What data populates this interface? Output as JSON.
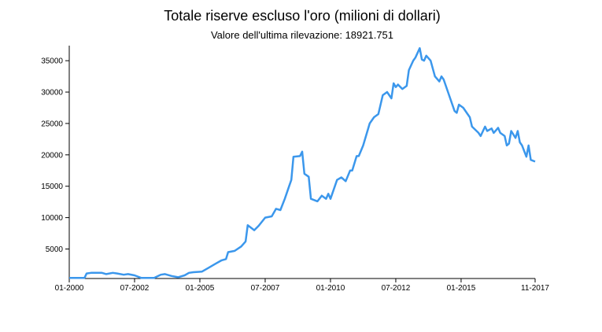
{
  "chart_data": {
    "type": "line",
    "title": "Totale riserve escluso l'oro (milioni di dollari)",
    "subtitle": "Valore dell'ultima rilevazione: 18921.751",
    "x": [
      "01-2000",
      "08-2000",
      "09-2000",
      "11-2000",
      "04-2001",
      "06-2001",
      "09-2001",
      "11-2001",
      "02-2002",
      "04-2002",
      "07-2002",
      "10-2002",
      "04-2003",
      "07-2003",
      "09-2003",
      "12-2003",
      "03-2004",
      "06-2004",
      "08-2004",
      "10-2004",
      "02-2005",
      "05-2005",
      "08-2005",
      "11-2005",
      "01-2006",
      "02-2006",
      "05-2006",
      "08-2006",
      "10-2006",
      "11-2006",
      "02-2007",
      "04-2007",
      "07-2007",
      "10-2007",
      "12-2007",
      "02-2008",
      "04-2008",
      "06-2008",
      "07-2008",
      "08-2008",
      "11-2008",
      "12-2008",
      "01-2009",
      "03-2009",
      "04-2009",
      "07-2009",
      "09-2009",
      "11-2009",
      "12-2009",
      "01-2010",
      "04-2010",
      "06-2010",
      "08-2010",
      "10-2010",
      "11-2010",
      "01-2011",
      "02-2011",
      "04-2011",
      "07-2011",
      "09-2011",
      "11-2011",
      "01-2012",
      "03-2012",
      "05-2012",
      "06-2012",
      "07-2012",
      "08-2012",
      "10-2012",
      "12-2012",
      "01-2013",
      "03-2013",
      "04-2013",
      "06-2013",
      "07-2013",
      "08-2013",
      "09-2013",
      "11-2013",
      "01-2014",
      "03-2014",
      "04-2014",
      "05-2014",
      "07-2014",
      "10-2014",
      "11-2014",
      "12-2014",
      "02-2015",
      "04-2015",
      "05-2015",
      "06-2015",
      "09-2015",
      "10-2015",
      "12-2015",
      "01-2016",
      "03-2016",
      "04-2016",
      "06-2016",
      "07-2016",
      "09-2016",
      "10-2016",
      "11-2016",
      "12-2016",
      "02-2017",
      "03-2017",
      "04-2017",
      "05-2017",
      "07-2017",
      "08-2017",
      "09-2017",
      "11-2017"
    ],
    "series": [
      {
        "color": "#3b97ec",
        "values": [
          400,
          400,
          1100,
          1200,
          1200,
          1000,
          1200,
          1100,
          900,
          1000,
          800,
          400,
          400,
          900,
          1000,
          700,
          500,
          800,
          1200,
          1300,
          1400,
          2000,
          2600,
          3200,
          3400,
          4500,
          4700,
          5400,
          6200,
          8800,
          8000,
          8700,
          10000,
          10200,
          11400,
          11200,
          13000,
          15000,
          16000,
          19700,
          19800,
          20500,
          17000,
          16500,
          13000,
          12600,
          13500,
          13000,
          13800,
          13000,
          16000,
          16400,
          15800,
          17500,
          17500,
          19800,
          19800,
          21500,
          25000,
          26000,
          26500,
          29500,
          30000,
          29000,
          31400,
          30800,
          31200,
          30500,
          31000,
          33500,
          35000,
          35500,
          37000,
          35200,
          35000,
          35800,
          35000,
          32500,
          31700,
          32500,
          32000,
          30000,
          27000,
          26700,
          28000,
          27500,
          26500,
          26000,
          24500,
          23500,
          23000,
          24500,
          23800,
          24200,
          23500,
          24300,
          23500,
          23000,
          21500,
          21800,
          23800,
          22700,
          23800,
          22000,
          21500,
          19700,
          21500,
          19200,
          18921.751
        ]
      }
    ],
    "xlim": [
      "01-2000",
      "11-2017"
    ],
    "xticks": [
      "01-2000",
      "07-2002",
      "01-2005",
      "07-2007",
      "01-2010",
      "07-2012",
      "01-2015",
      "11-2017"
    ],
    "ylim": [
      300,
      37400
    ],
    "yticks": [
      5000,
      10000,
      15000,
      20000,
      25000,
      30000,
      35000
    ]
  }
}
